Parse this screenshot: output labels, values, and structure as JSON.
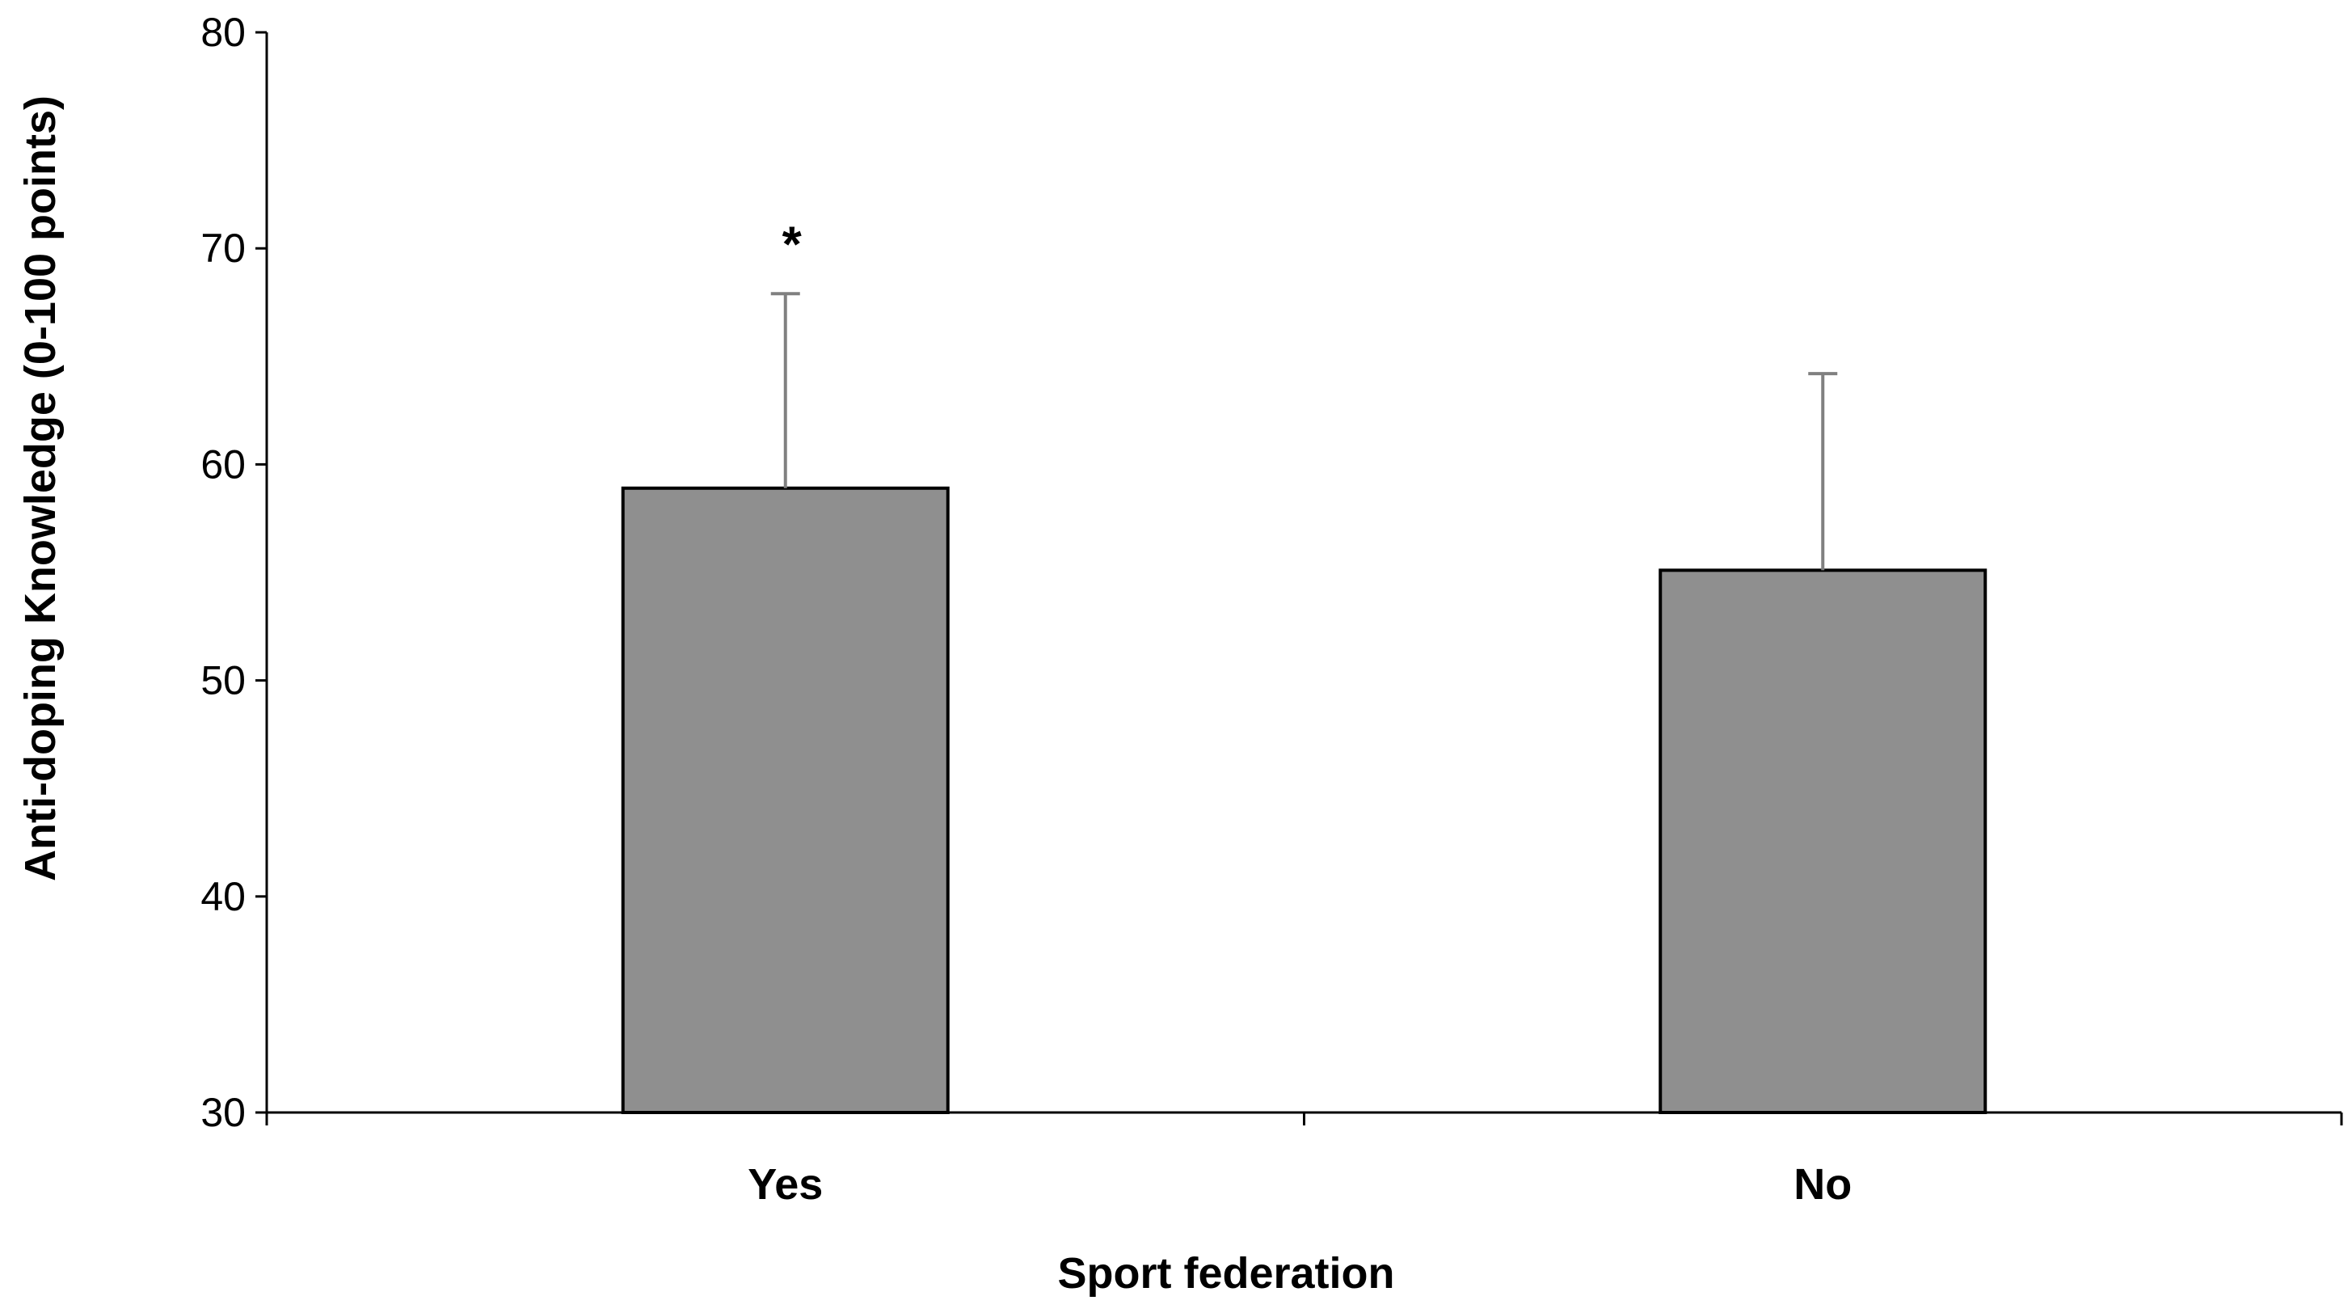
{
  "chart_data": {
    "type": "bar",
    "categories": [
      "Yes",
      "No"
    ],
    "values": [
      58.9,
      55.1
    ],
    "error_upper": [
      67.9,
      64.2
    ],
    "annotations": [
      {
        "category": "Yes",
        "text": "*"
      }
    ],
    "title": "",
    "xlabel": "Sport federation",
    "ylabel": "Anti-doping Knowledge (0-100 points)",
    "ylim": [
      30,
      80
    ],
    "yticks": [
      30,
      40,
      50,
      60,
      70,
      80
    ],
    "grid": false,
    "legend": "none",
    "colors": {
      "bar_fill": "#8f8f8f",
      "bar_stroke": "#000000",
      "error_bar": "#808080",
      "axis": "#000000"
    }
  }
}
